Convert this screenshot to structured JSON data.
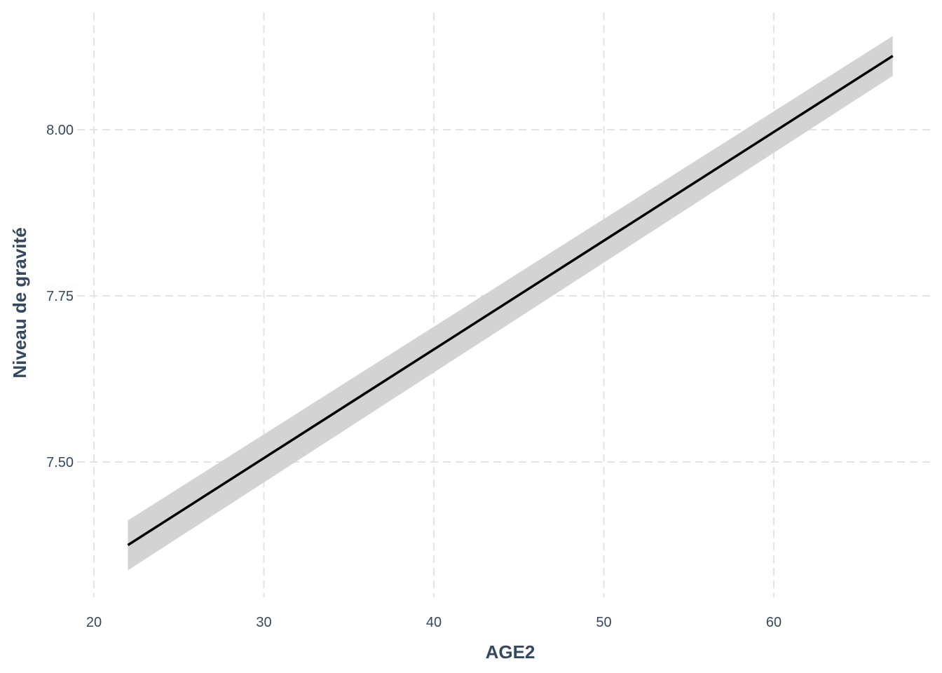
{
  "chart_data": {
    "type": "line",
    "title": "",
    "xlabel": "AGE2",
    "ylabel": "Niveau de gravité",
    "xlim": [
      20,
      69
    ],
    "ylim": [
      7.3,
      8.14
    ],
    "x_ticks": [
      20,
      30,
      40,
      50,
      60
    ],
    "y_ticks": [
      7.5,
      7.75,
      8.0
    ],
    "x_tick_labels": [
      "20",
      "30",
      "40",
      "50",
      "60"
    ],
    "y_tick_labels": [
      "7.50",
      "7.75",
      "8.00"
    ],
    "grid": true,
    "legend": "none",
    "series": [
      {
        "x": [
          22,
          67
        ],
        "y": [
          7.375,
          8.111
        ],
        "ci_lower": [
          7.337,
          8.081
        ],
        "ci_upper": [
          7.412,
          8.141
        ],
        "color": "#000000",
        "ribbon_color": "#d3d3d3"
      }
    ]
  }
}
